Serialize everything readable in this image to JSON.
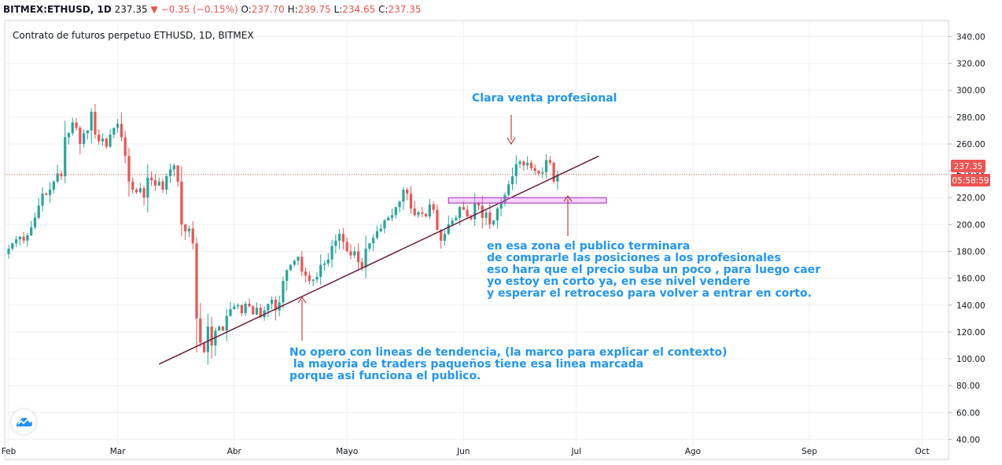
{
  "header": {
    "symbol": "BITMEX:ETHUSD, 1D",
    "last": "237.35",
    "change": "−0.35 (−0.15%)",
    "o_label": "O:",
    "o": "237.70",
    "h_label": "H:",
    "h": "239.75",
    "l_label": "L:",
    "l": "234.65",
    "c_label": "C:",
    "c": "237.35"
  },
  "subtitle": "Contrato de futuros perpetuo ETHUSD, 1D, BITMEX",
  "price_badge": "237.35",
  "countdown_badge": "05:58:59",
  "annotations": {
    "clara": "Clara venta profesional",
    "zona": "en esa zona el publico terminara\nde comprarle las posiciones a los profesionales\neso hara que el precio suba un poco , para luego caer\nyo estoy en corto ya, en ese nivel vendere\ny esperar el retroceso para volver a entrar en corto.",
    "lineas": "No opero con lineas de tendencia, (la marco para explicar el contexto)\n la mayoria de traders paqueños tiene esa linea marcada\nporque asi funciona el publico."
  },
  "colors": {
    "up": "#26a69a",
    "down": "#ef5350",
    "trendline": "#6d1d3e",
    "zone": "#ea80fc",
    "arrow": "#b71c1c",
    "text": "#2196f3"
  },
  "icons": {
    "logo": "tradingview-cloud-icon",
    "down_arrow": "arrow-down-icon",
    "up_arrow": "arrow-up-icon"
  },
  "chart_data": {
    "type": "candlestick",
    "title": "Contrato de futuros perpetuo ETHUSD, 1D, BITMEX",
    "x_ticks": [
      "Feb",
      "Mar",
      "Abr",
      "Mayo",
      "Jun",
      "Jul",
      "Ago",
      "Sep",
      "Oct"
    ],
    "y_ticks": [
      "40.00",
      "60.00",
      "80.00",
      "100.00",
      "120.00",
      "140.00",
      "160.00",
      "180.00",
      "200.00",
      "220.00",
      "240.00",
      "260.00",
      "280.00",
      "300.00",
      "320.00",
      "340.00"
    ],
    "ylim": [
      25,
      352
    ],
    "last_price": 237.35,
    "close_series": {
      "start": "2020-02-01",
      "closes": [
        182,
        186,
        189,
        191,
        188,
        192,
        198,
        205,
        214,
        223,
        222,
        226,
        232,
        238,
        236,
        265,
        268,
        276,
        272,
        260,
        268,
        270,
        284,
        267,
        262,
        264,
        258,
        267,
        272,
        275,
        265,
        251,
        232,
        226,
        224,
        227,
        220,
        235,
        233,
        229,
        232,
        226,
        236,
        241,
        244,
        232,
        200,
        195,
        197,
        186,
        130,
        112,
        105,
        124,
        110,
        121,
        124,
        121,
        132,
        137,
        139,
        140,
        134,
        141,
        139,
        133,
        138,
        131,
        136,
        141,
        144,
        136,
        142,
        158,
        166,
        170,
        173,
        176,
        165,
        162,
        158,
        159,
        161,
        170,
        171,
        174,
        184,
        188,
        193,
        187,
        180,
        177,
        180,
        172,
        168,
        182,
        186,
        190,
        195,
        197,
        203,
        205,
        207,
        213,
        217,
        226,
        223,
        212,
        207,
        209,
        208,
        206,
        215,
        211,
        196,
        188,
        193,
        200,
        203,
        205,
        213,
        211,
        206,
        204,
        216,
        214,
        205,
        209,
        200,
        203,
        212,
        216,
        222,
        230,
        236,
        245,
        247,
        244,
        246,
        242,
        240,
        238,
        239,
        248,
        246,
        232,
        237.35
      ]
    },
    "trendline": {
      "from": [
        "2020-03-12",
        96
      ],
      "to": [
        "2020-07-07",
        251
      ]
    },
    "zone": {
      "x_from": "2020-05-28",
      "x_to": "2020-07-09",
      "y_from": 216,
      "y_to": 220
    }
  }
}
